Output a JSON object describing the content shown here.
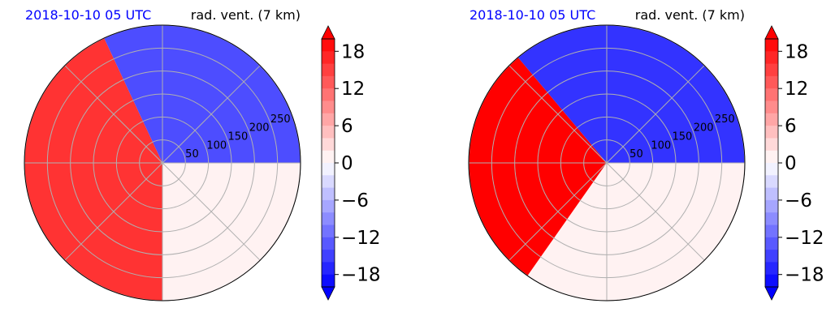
{
  "chart_data": [
    {
      "type": "heatmap",
      "projection": "polar",
      "title_left": "2018-10-10 05 UTC",
      "title_right": "rad. vent. (7 km)",
      "range_rings": [
        "50",
        "100",
        "150",
        "200",
        "250"
      ],
      "colorbar": {
        "ticks": [
          "18",
          "12",
          "6",
          "0",
          "−6",
          "−12",
          "−18"
        ],
        "range": [
          -20,
          20
        ],
        "extend": "both"
      },
      "regions": [
        {
          "value": 16,
          "from_deg": 115,
          "to_deg": 270
        },
        {
          "value": -14,
          "from_deg": 0,
          "to_deg": 115
        },
        {
          "value": 1,
          "from_deg": 270,
          "to_deg": 360
        }
      ]
    },
    {
      "type": "heatmap",
      "projection": "polar",
      "title_left": "2018-10-10 05 UTC",
      "title_right": "rad. vent. (7 km)",
      "range_rings": [
        "50",
        "100",
        "150",
        "200",
        "250"
      ],
      "colorbar": {
        "ticks": [
          "18",
          "12",
          "6",
          "0",
          "−6",
          "−12",
          "−18"
        ],
        "range": [
          -20,
          20
        ],
        "extend": "both"
      },
      "regions": [
        {
          "value": 20,
          "from_deg": 130,
          "to_deg": 235
        },
        {
          "value": -16,
          "from_deg": 0,
          "to_deg": 130
        },
        {
          "value": 1,
          "from_deg": 235,
          "to_deg": 360
        }
      ]
    }
  ],
  "colors": {
    "title_left": "#0000ff",
    "title_right": "#000000",
    "strong_red": "#ff0000",
    "strong_blue": "#0000ff",
    "near_zero": "#fdf0f0",
    "grid": "#b0b0b0"
  }
}
